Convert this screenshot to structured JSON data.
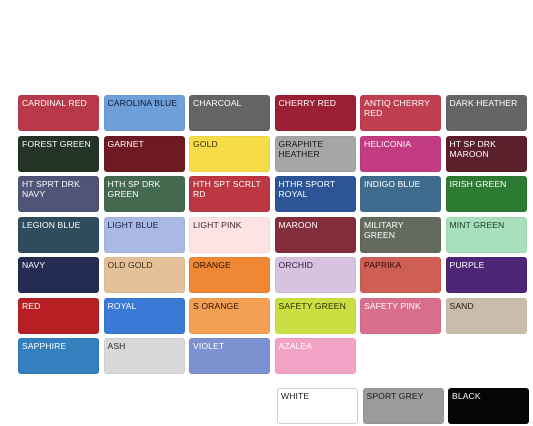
{
  "swatches": [
    {
      "label": "CARDINAL RED",
      "bg": "#b8394a",
      "fg": "#ffffff"
    },
    {
      "label": "CAROLINA BLUE",
      "bg": "#6e9fd9",
      "fg": "#0a1a3a"
    },
    {
      "label": "CHARCOAL",
      "bg": "#646464",
      "fg": "#ffffff"
    },
    {
      "label": "CHERRY RED",
      "bg": "#9c2034",
      "fg": "#ffffff"
    },
    {
      "label": "ANTIQ CHERRY RED",
      "bg": "#bf3e4f",
      "fg": "#ffffff"
    },
    {
      "label": "DARK HEATHER",
      "bg": "#656565",
      "fg": "#ffffff"
    },
    {
      "label": "FOREST GREEN",
      "bg": "#233326",
      "fg": "#ffffff"
    },
    {
      "label": "GARNET",
      "bg": "#6e1a22",
      "fg": "#ffffff"
    },
    {
      "label": "GOLD",
      "bg": "#f7dc4a",
      "fg": "#3a3000"
    },
    {
      "label": "GRAPHITE HEATHER",
      "bg": "#a6a6a6",
      "fg": "#1a1a1a"
    },
    {
      "label": "HELICONIA",
      "bg": "#c23b83",
      "fg": "#ffffff"
    },
    {
      "label": "HT SP DRK MAROON",
      "bg": "#5c1f2c",
      "fg": "#ffffff"
    },
    {
      "label": "HT SPRT DRK NAVY",
      "bg": "#4f5478",
      "fg": "#ffffff"
    },
    {
      "label": "HTH SP DRK GREEN",
      "bg": "#44694e",
      "fg": "#ffffff"
    },
    {
      "label": "HTH SPT SCRLT RD",
      "bg": "#bc3742",
      "fg": "#ffffff"
    },
    {
      "label": "HTHR SPORT ROYAL",
      "bg": "#2d5497",
      "fg": "#ffffff"
    },
    {
      "label": "INDIGO BLUE",
      "bg": "#3f6c8e",
      "fg": "#ffffff"
    },
    {
      "label": "IRISH GREEN",
      "bg": "#2d7b32",
      "fg": "#ffffff"
    },
    {
      "label": "LEGION BLUE",
      "bg": "#2e4c5c",
      "fg": "#ffffff"
    },
    {
      "label": "LIGHT BLUE",
      "bg": "#a9b9e4",
      "fg": "#1a2040"
    },
    {
      "label": "LIGHT PINK",
      "bg": "#fde3e4",
      "fg": "#3a2a2a"
    },
    {
      "label": "MAROON",
      "bg": "#832f3b",
      "fg": "#ffffff"
    },
    {
      "label": "MILITARY GREEN",
      "bg": "#646a5e",
      "fg": "#ffffff"
    },
    {
      "label": "MINT GREEN",
      "bg": "#a8dfbc",
      "fg": "#1a3a2a"
    },
    {
      "label": "NAVY",
      "bg": "#252c52",
      "fg": "#ffffff"
    },
    {
      "label": "OLD GOLD",
      "bg": "#e4c199",
      "fg": "#3a2a10"
    },
    {
      "label": "ORANGE",
      "bg": "#ef8735",
      "fg": "#2a1000"
    },
    {
      "label": "ORCHID",
      "bg": "#d7c3e0",
      "fg": "#2a1a3a"
    },
    {
      "label": "PAPRIKA",
      "bg": "#cf5f54",
      "fg": "#2a0a0a"
    },
    {
      "label": "PURPLE",
      "bg": "#4e2678",
      "fg": "#ffffff"
    },
    {
      "label": "RED",
      "bg": "#b62024",
      "fg": "#ffffff"
    },
    {
      "label": "ROYAL",
      "bg": "#3a79d5",
      "fg": "#ffffff"
    },
    {
      "label": "S ORANGE",
      "bg": "#f3a054",
      "fg": "#2a1000"
    },
    {
      "label": "SAFETY GREEN",
      "bg": "#c9df42",
      "fg": "#2a3000"
    },
    {
      "label": "SAFETY PINK",
      "bg": "#d86e8d",
      "fg": "#ffffff"
    },
    {
      "label": "SAND",
      "bg": "#c9bcad",
      "fg": "#2a2010"
    },
    {
      "label": "SAPPHIRE",
      "bg": "#347fbe",
      "fg": "#ffffff"
    },
    {
      "label": "ASH",
      "bg": "#d8d8d8",
      "fg": "#2a2a2a"
    },
    {
      "label": "VIOLET",
      "bg": "#7d90cf",
      "fg": "#ffffff"
    },
    {
      "label": "AZALEA",
      "bg": "#f2a3c6",
      "fg": "#ffffff"
    }
  ],
  "bottom": [
    {
      "label": "WHITE",
      "bg": "#ffffff",
      "fg": "#222222"
    },
    {
      "label": "SPORT GREY",
      "bg": "#9b9b9b",
      "fg": "#1a1a1a"
    },
    {
      "label": "BLACK",
      "bg": "#050505",
      "fg": "#ffffff"
    }
  ]
}
